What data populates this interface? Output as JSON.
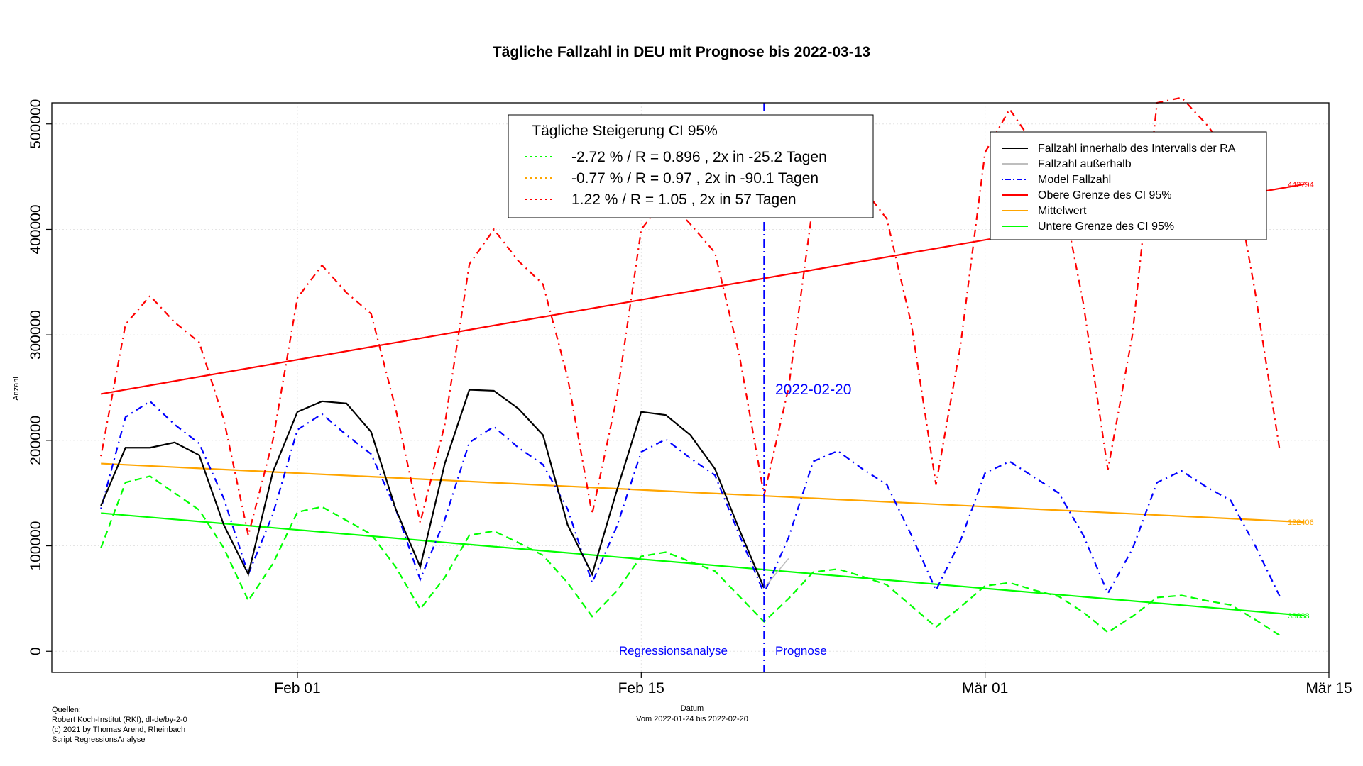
{
  "chart_data": {
    "type": "line",
    "title": "Tägliche Fallzahl in DEU mit Prognose bis 2022-03-13",
    "xlabel": "Datum",
    "xlabel_sub": "Vom 2022-01-24 bis 2022-02-20",
    "ylabel": "Anzahl",
    "x_start": "2022-01-24",
    "x_ticks": [
      {
        "date": "2022-02-01",
        "label": "Feb 01"
      },
      {
        "date": "2022-02-15",
        "label": "Feb 15"
      },
      {
        "date": "2022-03-01",
        "label": "Mär 01"
      },
      {
        "date": "2022-03-15",
        "label": "Mär 15"
      }
    ],
    "xlim": [
      "2022-01-22",
      "2022-03-15"
    ],
    "y_ticks": [
      0,
      100000,
      200000,
      300000,
      400000,
      500000
    ],
    "y_tick_labels": [
      "0",
      "100000",
      "200000",
      "300000",
      "400000",
      "500000"
    ],
    "ylim": [
      -20000,
      520000
    ],
    "grid": true,
    "cutoff": {
      "date": "2022-02-20",
      "label": "2022-02-20",
      "left_label": "Regressionsanalyse",
      "right_label": "Prognose"
    },
    "series": [
      {
        "key": "actual",
        "name": "Fallzahl innerhalb des Intervalls der RA",
        "color": "#000000",
        "dash": "solid",
        "values": [
          138000,
          193000,
          193000,
          198000,
          186000,
          120000,
          73000,
          170000,
          227000,
          237000,
          235000,
          208000,
          135000,
          80000,
          178000,
          248000,
          247000,
          230000,
          205000,
          120000,
          73000,
          152000,
          227000,
          224000,
          205000,
          173000,
          115000,
          60000
        ]
      },
      {
        "key": "outside",
        "name": "Fallzahl außerhalb",
        "color": "#bebebe",
        "dash": "solid",
        "values": [
          60000,
          88000
        ],
        "start_day": 27
      },
      {
        "key": "model",
        "name": "Model Fallzahl",
        "color": "#0000ff",
        "dash": "dotdash",
        "values": [
          135000,
          222000,
          237000,
          215000,
          197000,
          145000,
          73000,
          130000,
          210000,
          225000,
          205000,
          187000,
          135000,
          68000,
          125000,
          198000,
          213000,
          193000,
          177000,
          135000,
          65000,
          118000,
          189000,
          201000,
          183000,
          167000,
          110000,
          55000,
          108000,
          180000,
          190000,
          173000,
          158000,
          110000,
          58000,
          105000,
          169000,
          180000,
          165000,
          150000,
          110000,
          55000,
          97000,
          160000,
          171000,
          156000,
          143000,
          100000,
          52000
        ]
      },
      {
        "key": "model_upper",
        "name": "",
        "color": "#ff0000",
        "dash": "dotdash",
        "values": [
          185000,
          310000,
          337000,
          312000,
          293000,
          220000,
          110000,
          200000,
          335000,
          366000,
          340000,
          320000,
          230000,
          122000,
          215000,
          367000,
          400000,
          370000,
          348000,
          260000,
          130000,
          240000,
          400000,
          430000,
          405000,
          378000,
          280000,
          148000,
          250000,
          425000,
          460000,
          440000,
          410000,
          310000,
          158000,
          290000,
          473000,
          514000,
          480000,
          450000,
          330000,
          172000,
          300000,
          520000,
          525000,
          500000,
          470000,
          340000,
          190000
        ]
      },
      {
        "key": "model_lower",
        "name": "",
        "color": "#00ff00",
        "dash": "dash",
        "values": [
          98000,
          160000,
          166000,
          150000,
          134000,
          98000,
          48000,
          83000,
          132000,
          137000,
          124000,
          111000,
          80000,
          40000,
          70000,
          110000,
          114000,
          103000,
          91000,
          65000,
          33000,
          57000,
          90000,
          94000,
          85000,
          76000,
          52000,
          28000,
          50000,
          75000,
          78000,
          71000,
          63000,
          43000,
          23000,
          42000,
          62000,
          65000,
          58000,
          52000,
          37000,
          18000,
          33000,
          51000,
          53000,
          48000,
          44000,
          30000,
          15000
        ]
      },
      {
        "key": "upper_ci",
        "name": "Obere Grenze des CI 95%",
        "color": "#ff0000",
        "dash": "solid",
        "values": [
          244000,
          442794
        ]
      },
      {
        "key": "mean",
        "name": "Mittelwert",
        "color": "#ffa500",
        "dash": "solid",
        "values": [
          178000,
          122406
        ]
      },
      {
        "key": "lower_ci",
        "name": "Untere Grenze des CI 95%",
        "color": "#00ff00",
        "dash": "solid",
        "values": [
          131000,
          33838
        ]
      }
    ],
    "end_labels": [
      {
        "text": "442794",
        "color": "#ff0000",
        "value": 442794
      },
      {
        "text": "122406",
        "color": "#ffa500",
        "value": 122406
      },
      {
        "text": "33838",
        "color": "#00ff00",
        "value": 33838
      }
    ],
    "growth_legend": {
      "title": "Tägliche Steigerung CI  95%",
      "items": [
        {
          "text": "-2.72 % / R = 0.896 , 2x in -25.2 Tagen",
          "color": "#00ff00"
        },
        {
          "text": "-0.77 % / R = 0.97 , 2x in -90.1 Tagen",
          "color": "#ffa500"
        },
        {
          "text": "1.22 % / R = 1.05 , 2x in 57 Tagen",
          "color": "#ff0000"
        }
      ]
    },
    "legend_position": "top-right"
  },
  "footer": {
    "sources_lines": [
      "Quellen:",
      "Robert Koch-Institut (RKI), dl-de/by-2-0",
      "(c) 2021 by Thomas Arend, Rheinbach",
      "Script RegressionsAnalyse"
    ]
  }
}
